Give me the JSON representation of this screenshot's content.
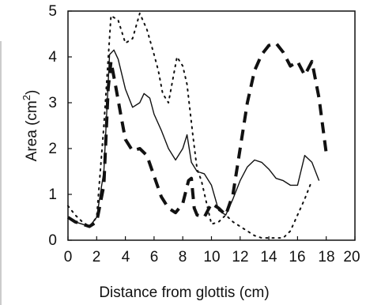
{
  "chart_data": {
    "type": "line",
    "title": "",
    "xlabel": "Distance from glottis (cm)",
    "ylabel_main": "Area (cm",
    "ylabel_sup": "2",
    "ylabel_close": ")",
    "xlim": [
      0,
      20
    ],
    "ylim": [
      0,
      5
    ],
    "xticks": [
      0,
      2,
      4,
      6,
      8,
      10,
      12,
      14,
      16,
      18,
      20
    ],
    "xtick_labels": [
      "0",
      "2",
      "4",
      "6",
      "8",
      "10",
      "12",
      "14",
      "16",
      "18",
      "20"
    ],
    "yticks": [
      0,
      1,
      2,
      3,
      4,
      5
    ],
    "ytick_labels": [
      "0",
      "1",
      "2",
      "3",
      "4",
      "5"
    ],
    "grid": false,
    "legend": "none",
    "series": [
      {
        "style": "solid",
        "color": "#111111",
        "x": [
          0,
          0.5,
          1.0,
          1.5,
          2.0,
          2.5,
          2.9,
          3.2,
          3.5,
          4.0,
          4.5,
          5.0,
          5.3,
          5.7,
          6.0,
          6.5,
          7.0,
          7.5,
          8.0,
          8.3,
          8.6,
          9.0,
          9.5,
          10.0,
          10.5,
          11.0,
          11.5,
          12.0,
          12.5,
          13.0,
          13.5,
          14.0,
          14.5,
          15.0,
          15.5,
          16.0,
          16.5,
          17.0,
          17.5
        ],
        "y": [
          0.5,
          0.4,
          0.35,
          0.3,
          0.5,
          1.5,
          4.05,
          4.15,
          3.95,
          3.3,
          2.9,
          3.0,
          3.2,
          3.1,
          2.75,
          2.4,
          2.0,
          1.75,
          2.0,
          2.3,
          1.7,
          1.5,
          1.45,
          1.2,
          0.65,
          0.55,
          0.9,
          1.3,
          1.6,
          1.75,
          1.7,
          1.55,
          1.35,
          1.3,
          1.2,
          1.2,
          1.85,
          1.7,
          1.3
        ]
      },
      {
        "style": "dashed",
        "color": "#111111",
        "x": [
          0,
          0.5,
          1.0,
          1.5,
          2.0,
          2.5,
          2.8,
          3.0,
          3.3,
          3.7,
          4.0,
          4.5,
          5.0,
          5.5,
          6.0,
          6.5,
          7.0,
          7.5,
          8.0,
          8.4,
          8.6,
          8.8,
          9.0,
          9.5,
          10.0,
          10.5,
          11.0,
          11.5,
          12.0,
          12.5,
          13.0,
          13.5,
          14.0,
          14.5,
          15.0,
          15.5,
          16.0,
          16.5,
          17.0,
          17.5,
          18.0
        ],
        "y": [
          0.5,
          0.4,
          0.35,
          0.3,
          0.4,
          1.2,
          3.3,
          3.9,
          3.4,
          2.7,
          2.2,
          1.95,
          2.0,
          1.85,
          1.4,
          0.95,
          0.7,
          0.6,
          0.8,
          1.3,
          1.35,
          0.7,
          0.55,
          0.5,
          0.8,
          0.7,
          0.55,
          1.0,
          2.0,
          3.0,
          3.7,
          4.05,
          4.25,
          4.3,
          4.1,
          3.8,
          3.9,
          3.6,
          3.9,
          3.1,
          1.9
        ]
      },
      {
        "style": "dotted",
        "color": "#111111",
        "x": [
          0,
          0.5,
          1.0,
          1.5,
          2.0,
          2.5,
          3.0,
          3.5,
          4.0,
          4.5,
          5.0,
          5.5,
          6.0,
          6.3,
          6.6,
          7.0,
          7.3,
          7.6,
          8.0,
          8.3,
          8.7,
          9.0,
          9.3,
          9.7,
          10.0,
          10.5,
          11.0,
          11.5,
          12.0,
          12.5,
          13.0,
          13.5,
          14.0,
          14.5,
          15.0,
          15.5,
          16.0,
          16.5,
          17.0
        ],
        "y": [
          0.75,
          0.55,
          0.4,
          0.3,
          0.5,
          2.5,
          4.9,
          4.8,
          4.3,
          4.4,
          4.95,
          4.6,
          4.05,
          3.7,
          3.2,
          3.0,
          3.5,
          4.0,
          3.8,
          3.4,
          2.3,
          1.55,
          1.3,
          0.75,
          0.35,
          0.4,
          0.55,
          0.4,
          0.3,
          0.2,
          0.1,
          0.05,
          0.05,
          0.05,
          0.05,
          0.2,
          0.55,
          0.9,
          1.3
        ]
      }
    ]
  }
}
